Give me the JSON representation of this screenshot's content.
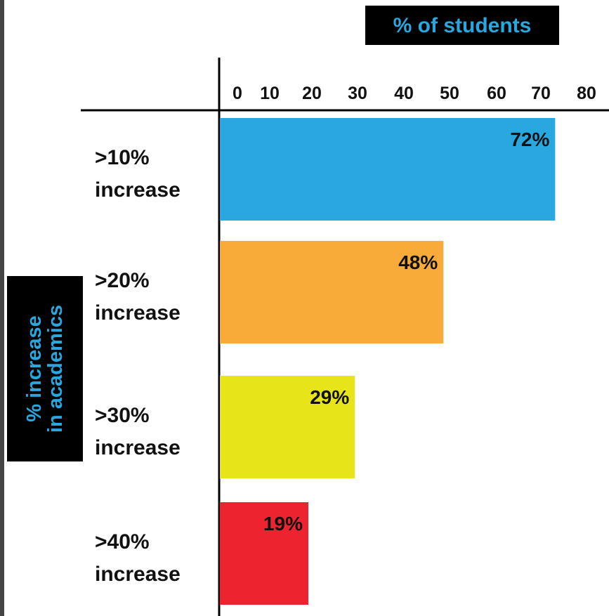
{
  "chart_data": {
    "type": "bar",
    "orientation": "horizontal",
    "title": "% of students",
    "ylabel": "% increase in academics",
    "ylabel_lines": [
      "% increase",
      "in academics"
    ],
    "categories": [
      ">10% increase",
      ">20% increase",
      ">30% increase",
      ">40% increase"
    ],
    "category_lines": [
      [
        ">10%",
        "increase"
      ],
      [
        ">20%",
        "increase"
      ],
      [
        ">30%",
        "increase"
      ],
      [
        ">40%",
        "increase"
      ]
    ],
    "values": [
      72,
      48,
      29,
      19
    ],
    "value_labels": [
      "72%",
      "48%",
      "29%",
      "19%"
    ],
    "bar_colors": [
      "#29a8e0",
      "#f8ab38",
      "#e8e41a",
      "#ee2330"
    ],
    "xticks": [
      "0",
      "10",
      "20",
      "30",
      "40",
      "50",
      "60",
      "70",
      "80"
    ],
    "xlim": [
      0,
      80
    ],
    "grid": false,
    "legend": "none",
    "title_style": {
      "background": "#000000",
      "color": "#29a8e0"
    },
    "ylabel_style": {
      "background": "#000000",
      "color": "#29a8e0"
    }
  },
  "frame": {
    "left_edge_color": "#444444",
    "axis_color": "#000000"
  }
}
